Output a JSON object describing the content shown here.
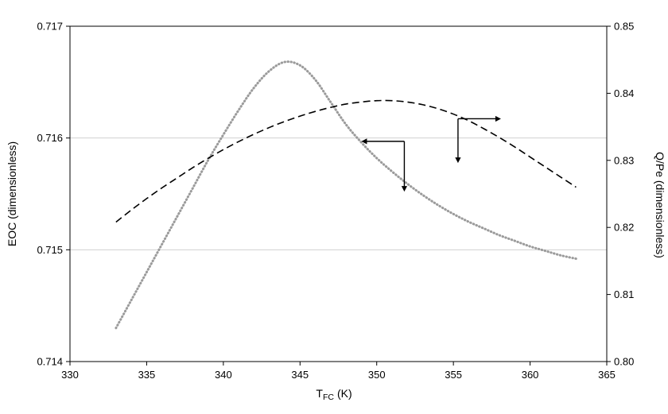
{
  "chart_data": {
    "type": "line",
    "title": "",
    "xlabel_parts": {
      "base": "T",
      "sub": "FC",
      "rest": "(K)"
    },
    "ylabel_left": "EOC (dimensionless)",
    "ylabel_right": "Q/Pe (dimensionless)",
    "x_range": [
      330,
      365
    ],
    "x_ticks": [
      "330",
      "335",
      "340",
      "345",
      "350",
      "355",
      "360",
      "365"
    ],
    "left_axis": {
      "range": [
        0.714,
        0.717
      ],
      "ticks": [
        "0.714",
        "0.715",
        "0.716",
        "0.717"
      ]
    },
    "right_axis": {
      "range": [
        0.8,
        0.85
      ],
      "ticks": [
        "0.80",
        "0.81",
        "0.82",
        "0.83",
        "0.84",
        "0.85"
      ]
    },
    "gridlines_left_values": [
      0.715,
      0.716
    ],
    "grid_color": "#d0d0d0",
    "axis_color": "#000000",
    "annotation_color": "#000000",
    "series": [
      {
        "name": "EOC",
        "axis": "left",
        "style": "dotted",
        "color": "#9b9b9b",
        "x": [
          333,
          334,
          335,
          336,
          337,
          338,
          339,
          340,
          341,
          342,
          343,
          344,
          345,
          346,
          347,
          348,
          349,
          350,
          351,
          352,
          353,
          354,
          355,
          356,
          357,
          358,
          359,
          360,
          361,
          362,
          363
        ],
        "y": [
          0.7143,
          0.71455,
          0.7148,
          0.71505,
          0.7153,
          0.71555,
          0.7158,
          0.71603,
          0.71625,
          0.71645,
          0.7166,
          0.71668,
          0.71665,
          0.71652,
          0.71632,
          0.71612,
          0.71596,
          0.71582,
          0.7157,
          0.71559,
          0.71549,
          0.7154,
          0.71532,
          0.71525,
          0.71519,
          0.71513,
          0.71508,
          0.71503,
          0.71499,
          0.71495,
          0.71492
        ]
      },
      {
        "name": "Q/Pe",
        "axis": "right",
        "style": "dashed",
        "color": "#000000",
        "x": [
          333,
          334,
          335,
          336,
          337,
          338,
          339,
          340,
          341,
          342,
          343,
          344,
          345,
          346,
          347,
          348,
          349,
          350,
          351,
          352,
          353,
          354,
          355,
          356,
          357,
          358,
          359,
          360,
          361,
          362,
          363
        ],
        "y": [
          0.8208,
          0.8226,
          0.8243,
          0.8259,
          0.8274,
          0.8289,
          0.8303,
          0.8316,
          0.8328,
          0.8339,
          0.8349,
          0.8358,
          0.8366,
          0.8373,
          0.8379,
          0.8384,
          0.8387,
          0.8389,
          0.8389,
          0.8387,
          0.8383,
          0.8377,
          0.8369,
          0.8359,
          0.8347,
          0.8334,
          0.832,
          0.8305,
          0.829,
          0.8275,
          0.826
        ]
      }
    ],
    "annotations": [
      {
        "name": "eoc-left-axis-arrow",
        "axis": "left",
        "corner_x": 351.8,
        "corner_y": 0.71597,
        "h_end_x": 349.0,
        "v_end_y": 0.71552
      },
      {
        "name": "qpe-right-axis-arrow",
        "axis": "right",
        "corner_x": 355.3,
        "corner_y": 0.8362,
        "h_end_x": 358.1,
        "v_end_y": 0.8296
      }
    ]
  }
}
